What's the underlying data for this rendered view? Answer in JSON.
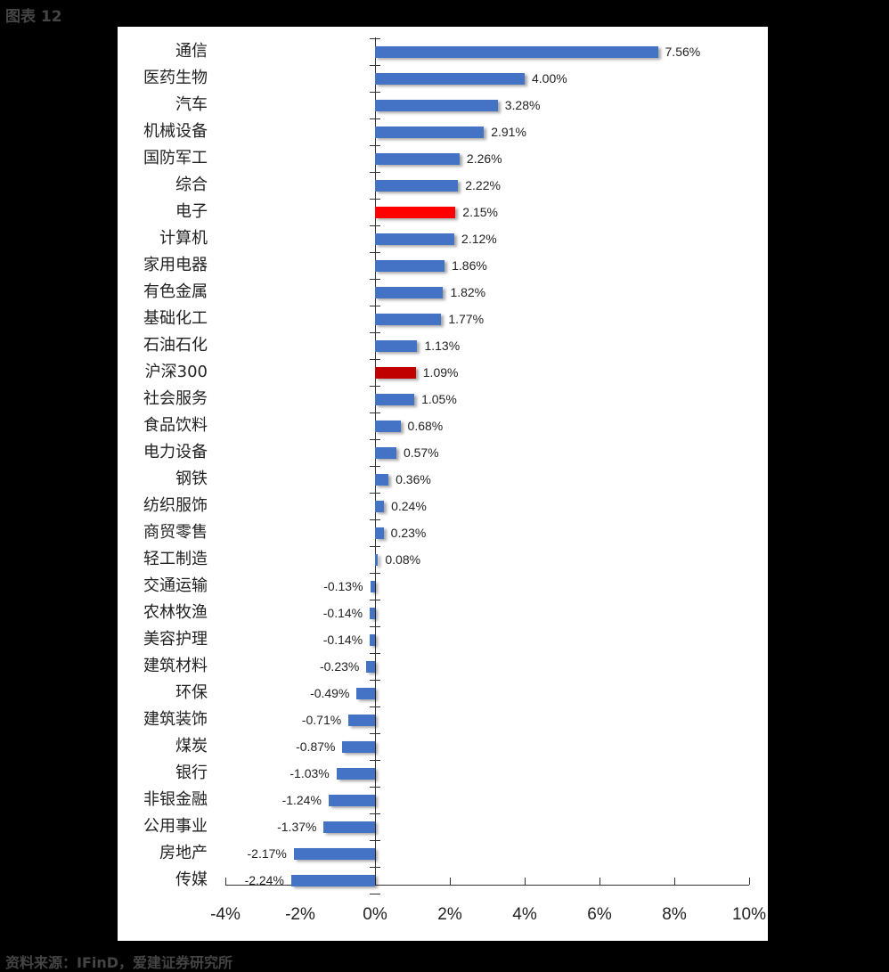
{
  "figure_label": "图表 12",
  "source": "资料来源：IFinD，爱建证券研究所",
  "colors": {
    "default_bar": "#4472C4",
    "highlight_bar": "#FF0000",
    "index_bar": "#C00000"
  },
  "chart_data": {
    "type": "bar",
    "orientation": "horizontal",
    "title": "",
    "xlabel": "",
    "ylabel": "",
    "xlim": [
      -4,
      10
    ],
    "x_ticks": [
      "-4%",
      "-2%",
      "0%",
      "2%",
      "4%",
      "6%",
      "8%",
      "10%"
    ],
    "grid": false,
    "legend": null,
    "categories": [
      "通信",
      "医药生物",
      "汽车",
      "机械设备",
      "国防军工",
      "综合",
      "电子",
      "计算机",
      "家用电器",
      "有色金属",
      "基础化工",
      "石油石化",
      "沪深300",
      "社会服务",
      "食品饮料",
      "电力设备",
      "钢铁",
      "纺织服饰",
      "商贸零售",
      "轻工制造",
      "交通运输",
      "农林牧渔",
      "美容护理",
      "建筑材料",
      "环保",
      "建筑装饰",
      "煤炭",
      "银行",
      "非银金融",
      "公用事业",
      "房地产",
      "传媒"
    ],
    "values": [
      7.56,
      4.0,
      3.28,
      2.91,
      2.26,
      2.22,
      2.15,
      2.12,
      1.86,
      1.82,
      1.77,
      1.13,
      1.09,
      1.05,
      0.68,
      0.57,
      0.36,
      0.24,
      0.23,
      0.08,
      -0.13,
      -0.14,
      -0.14,
      -0.23,
      -0.49,
      -0.71,
      -0.87,
      -1.03,
      -1.24,
      -1.37,
      -2.17,
      -2.24
    ],
    "labels": [
      "7.56%",
      "4.00%",
      "3.28%",
      "2.91%",
      "2.26%",
      "2.22%",
      "2.15%",
      "2.12%",
      "1.86%",
      "1.82%",
      "1.77%",
      "1.13%",
      "1.09%",
      "1.05%",
      "0.68%",
      "0.57%",
      "0.36%",
      "0.24%",
      "0.23%",
      "0.08%",
      "-0.13%",
      "-0.14%",
      "-0.14%",
      "-0.23%",
      "-0.49%",
      "-0.71%",
      "-0.87%",
      "-1.03%",
      "-1.24%",
      "-1.37%",
      "-2.17%",
      "-2.24%"
    ],
    "highlights": {
      "电子": "#FF0000",
      "沪深300": "#C00000"
    },
    "unit": "%"
  }
}
